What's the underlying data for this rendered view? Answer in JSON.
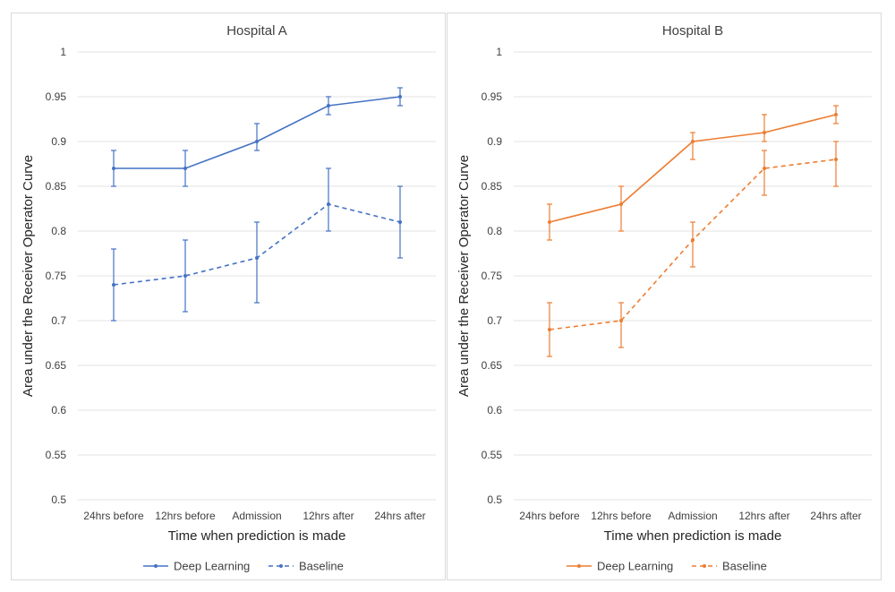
{
  "chart_data": [
    {
      "type": "line",
      "title": "Hospital A",
      "xlabel": "Time when prediction is made",
      "ylabel": "Area under the Receiver  Operator Curve",
      "categories": [
        "24hrs before",
        "12hrs before",
        "Admission",
        "12hrs after",
        "24hrs after"
      ],
      "ylim": [
        0.5,
        1
      ],
      "yticks": [
        "0.5",
        "0.55",
        "0.6",
        "0.65",
        "0.7",
        "0.75",
        "0.8",
        "0.85",
        "0.9",
        "0.95",
        "1"
      ],
      "grid": true,
      "legend_position": "bottom",
      "color": "#4472C4",
      "series": [
        {
          "name": "Deep Learning",
          "style": "solid",
          "values": [
            0.87,
            0.87,
            0.9,
            0.94,
            0.95
          ],
          "err_low": [
            0.85,
            0.85,
            0.89,
            0.93,
            0.94
          ],
          "err_high": [
            0.89,
            0.89,
            0.92,
            0.95,
            0.96
          ]
        },
        {
          "name": "Baseline",
          "style": "dashed",
          "values": [
            0.74,
            0.75,
            0.77,
            0.83,
            0.81
          ],
          "err_low": [
            0.7,
            0.71,
            0.72,
            0.8,
            0.77
          ],
          "err_high": [
            0.78,
            0.79,
            0.81,
            0.87,
            0.85
          ]
        }
      ]
    },
    {
      "type": "line",
      "title": "Hospital B",
      "xlabel": "Time when prediction is made",
      "ylabel": "Area under the Receiver  Operator Curve",
      "categories": [
        "24hrs before",
        "12hrs before",
        "Admission",
        "12hrs after",
        "24hrs after"
      ],
      "ylim": [
        0.5,
        1
      ],
      "yticks": [
        "0.5",
        "0.55",
        "0.6",
        "0.65",
        "0.7",
        "0.75",
        "0.8",
        "0.85",
        "0.9",
        "0.95",
        "1"
      ],
      "grid": true,
      "legend_position": "bottom",
      "color": "#ED7D31",
      "series": [
        {
          "name": "Deep Learning",
          "style": "solid",
          "values": [
            0.81,
            0.83,
            0.9,
            0.91,
            0.93
          ],
          "err_low": [
            0.79,
            0.8,
            0.88,
            0.9,
            0.92
          ],
          "err_high": [
            0.83,
            0.85,
            0.91,
            0.93,
            0.94
          ]
        },
        {
          "name": "Baseline",
          "style": "dashed",
          "values": [
            0.69,
            0.7,
            0.79,
            0.87,
            0.88
          ],
          "err_low": [
            0.66,
            0.67,
            0.76,
            0.84,
            0.85
          ],
          "err_high": [
            0.72,
            0.72,
            0.81,
            0.89,
            0.9
          ]
        }
      ]
    }
  ]
}
